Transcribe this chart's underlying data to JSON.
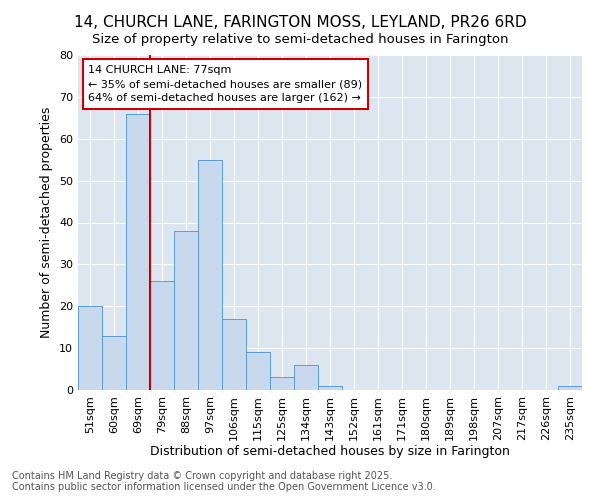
{
  "title_line1": "14, CHURCH LANE, FARINGTON MOSS, LEYLAND, PR26 6RD",
  "title_line2": "Size of property relative to semi-detached houses in Farington",
  "xlabel": "Distribution of semi-detached houses by size in Farington",
  "ylabel": "Number of semi-detached properties",
  "categories": [
    "51sqm",
    "60sqm",
    "69sqm",
    "79sqm",
    "88sqm",
    "97sqm",
    "106sqm",
    "115sqm",
    "125sqm",
    "134sqm",
    "143sqm",
    "152sqm",
    "161sqm",
    "171sqm",
    "180sqm",
    "189sqm",
    "198sqm",
    "207sqm",
    "217sqm",
    "226sqm",
    "235sqm"
  ],
  "values": [
    20,
    13,
    66,
    26,
    38,
    55,
    17,
    9,
    3,
    6,
    1,
    0,
    0,
    0,
    0,
    0,
    0,
    0,
    0,
    0,
    1
  ],
  "bar_color": "#c9d9ed",
  "bar_edge_color": "#5b9bd5",
  "vline_x_index": 3,
  "vline_color": "#cc0000",
  "annotation_text": "14 CHURCH LANE: 77sqm\n← 35% of semi-detached houses are smaller (89)\n64% of semi-detached houses are larger (162) →",
  "annotation_box_color": "#ffffff",
  "annotation_box_edge": "#cc0000",
  "fig_bg_color": "#ffffff",
  "plot_bg_color": "#dce6f1",
  "footer_line1": "Contains HM Land Registry data © Crown copyright and database right 2025.",
  "footer_line2": "Contains public sector information licensed under the Open Government Licence v3.0.",
  "ylim": [
    0,
    80
  ],
  "yticks": [
    0,
    10,
    20,
    30,
    40,
    50,
    60,
    70,
    80
  ],
  "title_fontsize": 11,
  "subtitle_fontsize": 9.5,
  "axis_label_fontsize": 9,
  "tick_fontsize": 8,
  "annotation_fontsize": 8,
  "footer_fontsize": 7
}
